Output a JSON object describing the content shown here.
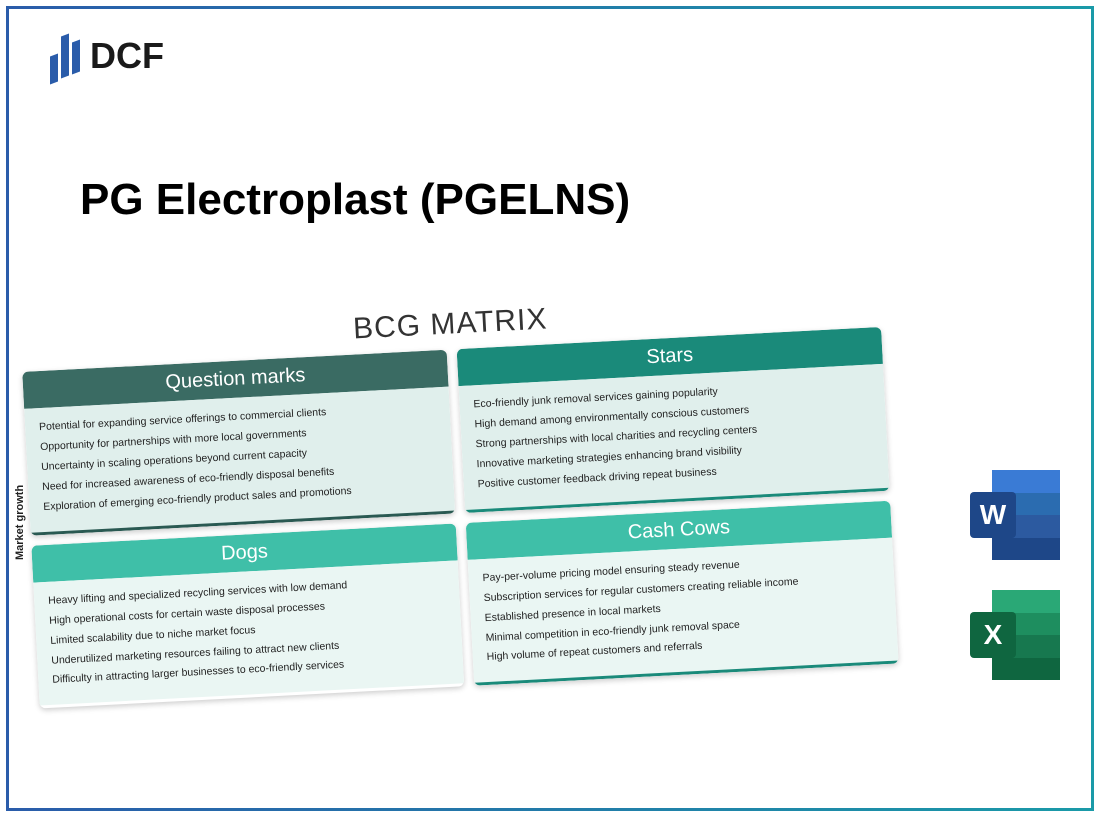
{
  "logo": {
    "text": "DCF"
  },
  "title": "PG Electroplast (PGELNS)",
  "matrix": {
    "title": "BCG MATRIX",
    "y_axis_label": "Market growth",
    "quadrants": {
      "question_marks": {
        "label": "Question marks",
        "header_color": "#3a6b63",
        "body_color": "#e0efec",
        "items": [
          "Potential for expanding service offerings to commercial clients",
          "Opportunity for partnerships with more local governments",
          "Uncertainty in scaling operations beyond current capacity",
          "Need for increased awareness of eco-friendly disposal benefits",
          "Exploration of emerging eco-friendly product sales and promotions"
        ]
      },
      "stars": {
        "label": "Stars",
        "header_color": "#1a8a7a",
        "body_color": "#e0efec",
        "items": [
          "Eco-friendly junk removal services gaining popularity",
          "High demand among environmentally conscious customers",
          "Strong partnerships with local charities and recycling centers",
          "Innovative marketing strategies enhancing brand visibility",
          "Positive customer feedback driving repeat business"
        ]
      },
      "dogs": {
        "label": "Dogs",
        "header_color": "#3fbfa8",
        "body_color": "#eaf6f3",
        "items": [
          "Heavy lifting and specialized recycling services with low demand",
          "High operational costs for certain waste disposal processes",
          "Limited scalability due to niche market focus",
          "Underutilized marketing resources failing to attract new clients",
          "Difficulty in attracting larger businesses to eco-friendly services"
        ]
      },
      "cash_cows": {
        "label": "Cash Cows",
        "header_color": "#3fbfa8",
        "body_color": "#eaf6f3",
        "items": [
          "Pay-per-volume pricing model ensuring steady revenue",
          "Subscription services for regular customers creating reliable income",
          "Established presence in local markets",
          "Minimal competition in eco-friendly junk removal space",
          "High volume of repeat customers and referrals"
        ]
      }
    }
  },
  "icons": {
    "word": {
      "letter": "W",
      "badge_color": "#1e4788"
    },
    "excel": {
      "letter": "X",
      "badge_color": "#0f6640"
    }
  }
}
